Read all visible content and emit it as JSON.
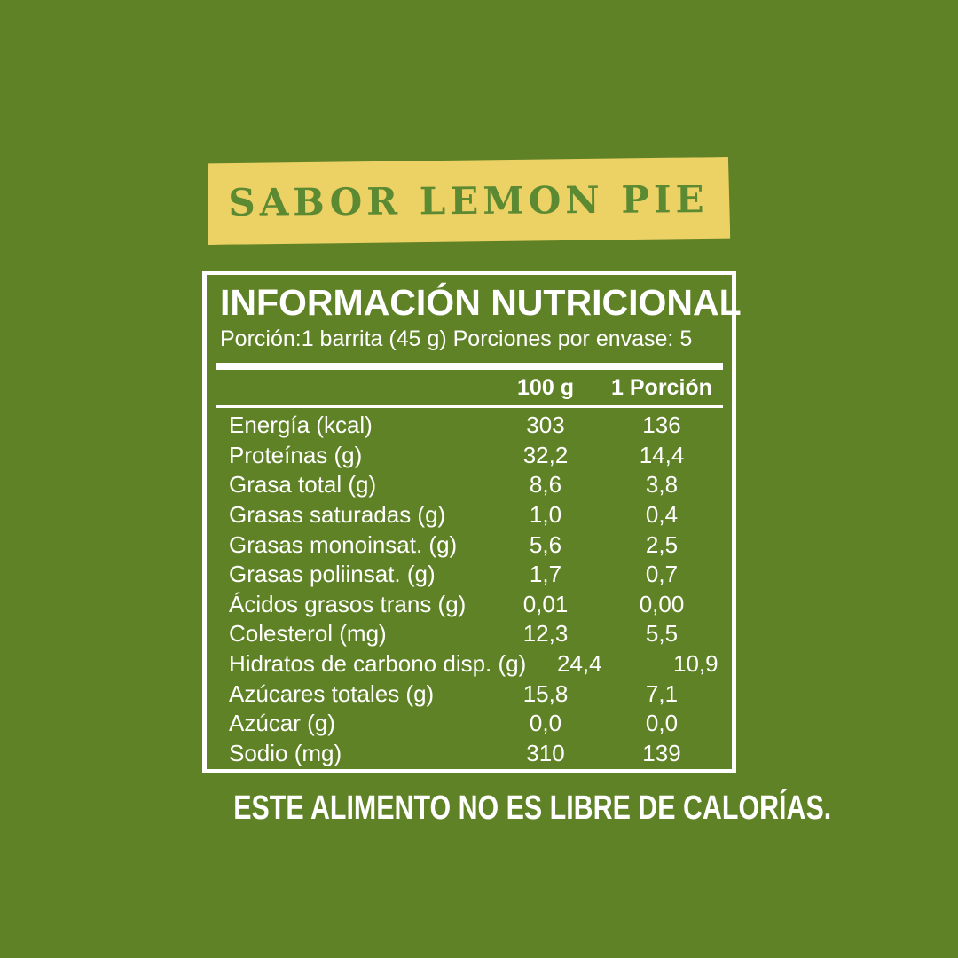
{
  "banner": {
    "label": "SABOR LEMON PIE"
  },
  "panel": {
    "title": "INFORMACIÓN NUTRICIONAL",
    "serving_line": "Porción:1 barrita (45 g) Porciones por envase: 5",
    "columns": {
      "col1": "100 g",
      "col2": "1 Porción"
    },
    "rows": [
      {
        "label": "Energía (kcal)",
        "per100": "303",
        "portion": "136"
      },
      {
        "label": "Proteínas (g)",
        "per100": "32,2",
        "portion": "14,4"
      },
      {
        "label": "Grasa total (g)",
        "per100": "8,6",
        "portion": "3,8"
      },
      {
        "label": "Grasas saturadas (g)",
        "per100": "1,0",
        "portion": "0,4"
      },
      {
        "label": "Grasas monoinsat. (g)",
        "per100": "5,6",
        "portion": "2,5"
      },
      {
        "label": "Grasas poliinsat. (g)",
        "per100": "1,7",
        "portion": "0,7"
      },
      {
        "label": "Ácidos grasos trans (g)",
        "per100": "0,01",
        "portion": "0,00"
      },
      {
        "label": "Colesterol (mg)",
        "per100": "12,3",
        "portion": "5,5"
      },
      {
        "label": "Hidratos de carbono disp. (g)",
        "per100": "24,4",
        "portion": "10,9"
      },
      {
        "label": "Azúcares totales (g)",
        "per100": "15,8",
        "portion": "7,1"
      },
      {
        "label": "Azúcar (g)",
        "per100": "0,0",
        "portion": "0,0"
      },
      {
        "label": "Sodio (mg)",
        "per100": "310",
        "portion": "139"
      }
    ]
  },
  "footer": {
    "statement": "ESTE ALIMENTO NO ES LIBRE DE CALORÍAS."
  },
  "colors": {
    "background": "#608227",
    "banner_fill": "#ECD164",
    "banner_text": "#5C8A33",
    "panel_border": "#FFFFFF",
    "text": "#FFFFFF"
  }
}
